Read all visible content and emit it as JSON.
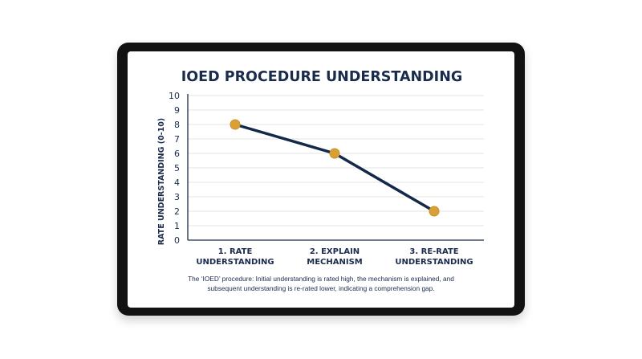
{
  "chart_data": {
    "type": "line",
    "title": "IOED PROCEDURE UNDERSTANDING",
    "ylabel": "RATE UNDERSTANDING (0-10)",
    "xlabel": "",
    "categories": [
      [
        "1. RATE",
        "UNDERSTANDING"
      ],
      [
        "2. EXPLAIN",
        "MECHANISM"
      ],
      [
        "3. RE-RATE",
        "UNDERSTANDING"
      ]
    ],
    "values": [
      8,
      6,
      2
    ],
    "ylim": [
      0,
      10
    ],
    "yticks": [
      0,
      1,
      2,
      3,
      4,
      5,
      6,
      7,
      8,
      9,
      10
    ],
    "grid": true,
    "line_color": "#14294a",
    "marker_color": "#dba035",
    "caption": [
      "The ‘IOED’ procedure: Initial understanding is rated high, the mechanism is explained, and",
      "subsequent understanding is re-rated lower, indicating a comprehension gap."
    ]
  }
}
